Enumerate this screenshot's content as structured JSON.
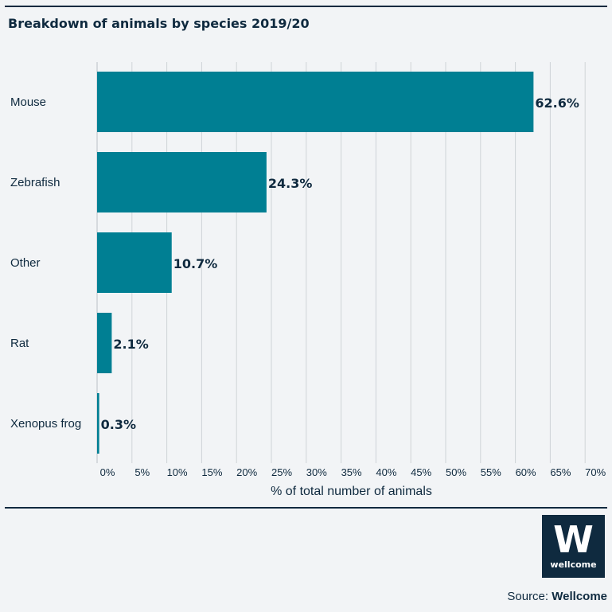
{
  "chart_data": {
    "type": "bar",
    "orientation": "horizontal",
    "title": "Breakdown of animals by species 2019/20",
    "categories": [
      "Mouse",
      "Zebrafish",
      "Other",
      "Rat",
      "Xenopus frog"
    ],
    "values": [
      62.6,
      24.3,
      10.7,
      2.1,
      0.3
    ],
    "value_labels": [
      "62.6%",
      "24.3%",
      "10.7%",
      "2.1%",
      "0.3%"
    ],
    "xlabel": "% of total number of animals",
    "xlim": [
      0,
      72
    ],
    "xticks": [
      0,
      5,
      10,
      15,
      20,
      25,
      30,
      35,
      40,
      45,
      50,
      55,
      60,
      65,
      70
    ],
    "xtick_labels": [
      "0%",
      "5%",
      "10%",
      "15%",
      "20%",
      "25%",
      "30%",
      "35%",
      "40%",
      "45%",
      "50%",
      "55%",
      "60%",
      "65%",
      "70%"
    ],
    "grid": true,
    "bar_color": "#007f93",
    "grid_color": "#cfd4d8"
  },
  "logo": {
    "mark": "W",
    "word": "wellcome",
    "color": "#0f2a3f"
  },
  "source": {
    "prefix": "Source:",
    "name": "Wellcome"
  }
}
